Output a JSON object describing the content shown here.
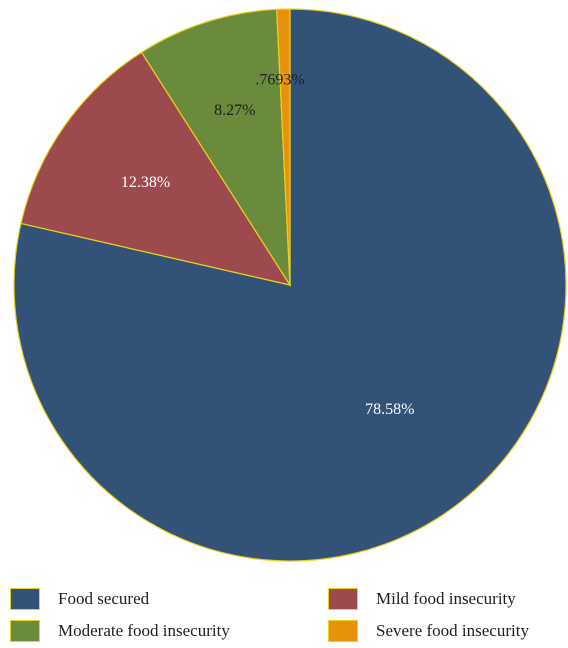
{
  "chart_data": {
    "type": "pie",
    "categories": [
      "Food secured",
      "Mild food insecurity",
      "Moderate food insecurity",
      "Severe food insecurity"
    ],
    "values": [
      78.58,
      12.38,
      8.27,
      0.7693
    ],
    "value_labels": [
      "78.58%",
      "12.38%",
      "8.27%",
      ".7693%"
    ],
    "colors": [
      "#335278",
      "#9c4a4d",
      "#6a8a3c",
      "#e8920c"
    ],
    "label_colors": [
      "#ffffff",
      "#ffffff",
      "#1f1f1f",
      "#1f1f1f"
    ],
    "slice_border_color": "#e8d21c",
    "legend_position": "bottom",
    "legend": [
      {
        "label": "Food secured",
        "color": "#335278"
      },
      {
        "label": "Mild food insecurity",
        "color": "#9c4a4d"
      },
      {
        "label": "Moderate food insecurity",
        "color": "#6a8a3c"
      },
      {
        "label": "Severe food insecurity",
        "color": "#e8920c"
      }
    ]
  }
}
